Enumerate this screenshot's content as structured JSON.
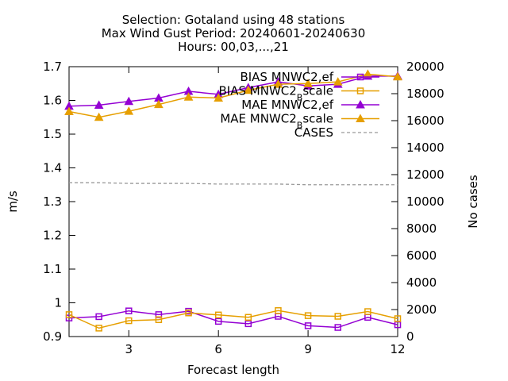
{
  "chart_data": {
    "type": "line",
    "title": [
      "Selection: Gotaland using    48 stations",
      "Max Wind Gust   Period: 20240601-20240630",
      "Hours: 00,03,...,21"
    ],
    "xlabel": "Forecast length",
    "ylabel": "m/s",
    "y2label": "No cases",
    "xlim": [
      1,
      12
    ],
    "ylim": [
      0.9,
      1.7
    ],
    "y2lim": [
      0,
      20000
    ],
    "xticks": [
      3,
      6,
      9,
      12
    ],
    "yticks": [
      0.9,
      1,
      1.1,
      1.2,
      1.3,
      1.4,
      1.5,
      1.6,
      1.7
    ],
    "y2ticks": [
      0,
      2000,
      4000,
      6000,
      8000,
      10000,
      12000,
      14000,
      16000,
      18000,
      20000
    ],
    "grid": false,
    "legend_position": "top-right",
    "x": [
      1,
      2,
      3,
      4,
      5,
      6,
      7,
      8,
      9,
      10,
      11,
      12
    ],
    "series": [
      {
        "name": "BIAS MNWC2,ef",
        "axis": "y",
        "color": "#9400d3",
        "marker": "square",
        "values": [
          0.955,
          0.959,
          0.976,
          0.965,
          0.975,
          0.945,
          0.938,
          0.96,
          0.932,
          0.927,
          0.957,
          0.935
        ]
      },
      {
        "name": "BIAS MNWC2_Bscale",
        "axis": "y",
        "color": "#e69f00",
        "marker": "square",
        "values": [
          0.965,
          0.925,
          0.947,
          0.95,
          0.97,
          0.964,
          0.957,
          0.977,
          0.962,
          0.96,
          0.974,
          0.953
        ]
      },
      {
        "name": "MAE MNWC2,ef",
        "axis": "y",
        "color": "#9400d3",
        "marker": "triangle",
        "values": [
          1.583,
          1.586,
          1.597,
          1.607,
          1.627,
          1.618,
          1.638,
          1.655,
          1.643,
          1.648,
          1.672,
          1.672
        ]
      },
      {
        "name": "MAE MNWC2_Bscale",
        "axis": "y",
        "color": "#e69f00",
        "marker": "triangle",
        "values": [
          1.567,
          1.55,
          1.568,
          1.588,
          1.61,
          1.607,
          1.63,
          1.648,
          1.65,
          1.655,
          1.678,
          1.67
        ]
      },
      {
        "name": "CASES",
        "axis": "y2",
        "color": "#999999",
        "marker": "none",
        "dash": true,
        "values": [
          11400,
          11400,
          11350,
          11350,
          11350,
          11300,
          11300,
          11300,
          11250,
          11250,
          11250,
          11250
        ]
      }
    ],
    "legend_labels": [
      {
        "pre": "BIAS MNWC2,ef",
        "sub": "",
        "post": ""
      },
      {
        "pre": "BIAS MNWC2",
        "sub": "B",
        "post": "scale"
      },
      {
        "pre": "MAE MNWC2,ef",
        "sub": "",
        "post": ""
      },
      {
        "pre": "MAE MNWC2",
        "sub": "B",
        "post": "scale"
      },
      {
        "pre": "CASES",
        "sub": "",
        "post": ""
      }
    ]
  }
}
